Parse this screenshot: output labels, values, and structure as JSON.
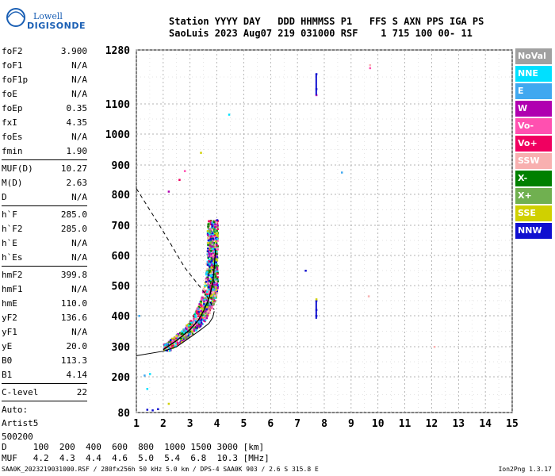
{
  "logo": {
    "line1": "Lowell",
    "line2": "DIGISONDE"
  },
  "header": {
    "line1": "Station YYYY DAY   DDD HHMMSS P1   FFS S AXN PPS IGA PS",
    "line2": "SaoLuis 2023 Aug07 219 031000 RSF    1 715 100 00- 11"
  },
  "params": [
    {
      "k": "foF2",
      "v": "3.900"
    },
    {
      "k": "foF1",
      "v": "N/A"
    },
    {
      "k": "foF1p",
      "v": "N/A"
    },
    {
      "k": "foE",
      "v": "N/A"
    },
    {
      "k": "foEp",
      "v": "0.35"
    },
    {
      "k": "fxI",
      "v": "4.35"
    },
    {
      "k": "foEs",
      "v": "N/A"
    },
    {
      "k": "fmin",
      "v": "1.90"
    }
  ],
  "params2": [
    {
      "k": "MUF(D)",
      "v": "10.27"
    },
    {
      "k": "M(D)",
      "v": "2.63"
    },
    {
      "k": "D",
      "v": "N/A"
    }
  ],
  "params3": [
    {
      "k": "h`F",
      "v": "285.0"
    },
    {
      "k": "h`F2",
      "v": "285.0"
    },
    {
      "k": "h`E",
      "v": "N/A"
    },
    {
      "k": "h`Es",
      "v": "N/A"
    }
  ],
  "params4": [
    {
      "k": "hmF2",
      "v": "399.8"
    },
    {
      "k": "hmF1",
      "v": "N/A"
    },
    {
      "k": "hmE",
      "v": "110.0"
    },
    {
      "k": "yF2",
      "v": "136.6"
    },
    {
      "k": "yF1",
      "v": "N/A"
    },
    {
      "k": "yE",
      "v": "20.0"
    },
    {
      "k": "B0",
      "v": "113.3"
    },
    {
      "k": "B1",
      "v": "4.14"
    }
  ],
  "clevel": {
    "k": "C-level",
    "v": "22"
  },
  "auto": [
    "Auto:",
    "Artist5",
    "500200"
  ],
  "legend": [
    {
      "label": "NoVal",
      "color": "#a0a0a0"
    },
    {
      "label": "NNE",
      "color": "#00e0ff"
    },
    {
      "label": "E",
      "color": "#40a8f0"
    },
    {
      "label": "W",
      "color": "#b000b0"
    },
    {
      "label": "Vo-",
      "color": "#ff50b0"
    },
    {
      "label": "Vo+",
      "color": "#f00060"
    },
    {
      "label": "SSW",
      "color": "#f8b0b0"
    },
    {
      "label": "X-",
      "color": "#008000"
    },
    {
      "label": "X+",
      "color": "#70b050"
    },
    {
      "label": "SSE",
      "color": "#d0d000"
    },
    {
      "label": "NNW",
      "color": "#1010d0"
    }
  ],
  "bottom": {
    "line1": "D     100  200  400  600  800  1000 1500 3000 [km]",
    "line2": "MUF   4.2  4.3  4.4  4.6  5.0  5.4  6.8  10.3 [MHz]"
  },
  "footer": "SAA0K_2023219031000.RSF / 280fx256h 50 kHz 5.0 km / DPS-4 SAA0K 903 / 2.6 S 315.8 E",
  "version": "Ion2Png 1.3.17",
  "chart_data": {
    "type": "scatter",
    "x_ticks": [
      1,
      2,
      3,
      4,
      5,
      6,
      7,
      8,
      9,
      10,
      11,
      12,
      13,
      14,
      15
    ],
    "y_ticks": [
      80,
      200,
      300,
      400,
      500,
      600,
      700,
      800,
      900,
      1000,
      1100,
      1280
    ],
    "xlim": [
      1,
      15
    ],
    "ylim": [
      80,
      1280
    ],
    "grid": true,
    "traced_profile": [
      [
        2.0,
        290
      ],
      [
        2.5,
        320
      ],
      [
        3.0,
        355
      ],
      [
        3.3,
        385
      ],
      [
        3.5,
        415
      ],
      [
        3.7,
        455
      ],
      [
        3.85,
        510
      ],
      [
        3.9,
        560
      ],
      [
        3.95,
        620
      ]
    ],
    "model_curve": [
      [
        1.0,
        270
      ],
      [
        2.0,
        285
      ],
      [
        2.5,
        300
      ],
      [
        3.0,
        330
      ],
      [
        3.4,
        355
      ],
      [
        3.7,
        375
      ],
      [
        3.85,
        395
      ],
      [
        3.9,
        415
      ]
    ],
    "dashed_line": [
      [
        1.0,
        820
      ],
      [
        2.0,
        680
      ],
      [
        2.8,
        560
      ],
      [
        3.6,
        470
      ],
      [
        3.9,
        420
      ]
    ],
    "sounding_cloud_x": [
      2.0,
      4.0
    ],
    "sounding_cloud_h": [
      290,
      720
    ],
    "isolated_points": [
      {
        "x": 7.7,
        "y": 1200,
        "c": "#1010d0"
      },
      {
        "x": 7.7,
        "y": 1150,
        "c": "#1010d0"
      },
      {
        "x": 7.7,
        "y": 1130,
        "c": "#b000b0"
      },
      {
        "x": 7.7,
        "y": 450,
        "c": "#1010d0"
      },
      {
        "x": 7.7,
        "y": 420,
        "c": "#1010d0"
      },
      {
        "x": 7.7,
        "y": 400,
        "c": "#1010d0"
      },
      {
        "x": 7.7,
        "y": 455,
        "c": "#d0d000"
      },
      {
        "x": 9.7,
        "y": 1230,
        "c": "#f8b0b0"
      },
      {
        "x": 9.7,
        "y": 1220,
        "c": "#ff50b0"
      },
      {
        "x": 4.45,
        "y": 1065,
        "c": "#00e0ff"
      },
      {
        "x": 8.65,
        "y": 875,
        "c": "#40a8f0"
      },
      {
        "x": 7.3,
        "y": 550,
        "c": "#1010d0"
      },
      {
        "x": 9.65,
        "y": 465,
        "c": "#f8b0b0"
      },
      {
        "x": 12.1,
        "y": 300,
        "c": "#f8b0b0"
      },
      {
        "x": 3.4,
        "y": 940,
        "c": "#d0d000"
      },
      {
        "x": 2.8,
        "y": 880,
        "c": "#ff50b0"
      },
      {
        "x": 2.6,
        "y": 850,
        "c": "#f00060"
      },
      {
        "x": 2.2,
        "y": 810,
        "c": "#b000b0"
      },
      {
        "x": 1.4,
        "y": 90,
        "c": "#1010d0"
      },
      {
        "x": 1.6,
        "y": 88,
        "c": "#1010d0"
      },
      {
        "x": 1.8,
        "y": 92,
        "c": "#1010d0"
      },
      {
        "x": 1.3,
        "y": 205,
        "c": "#40a8f0"
      },
      {
        "x": 1.5,
        "y": 210,
        "c": "#00e0ff"
      },
      {
        "x": 2.2,
        "y": 110,
        "c": "#d0d000"
      },
      {
        "x": 1.4,
        "y": 160,
        "c": "#00e0ff"
      },
      {
        "x": 1.1,
        "y": 400,
        "c": "#40a8f0"
      }
    ]
  }
}
